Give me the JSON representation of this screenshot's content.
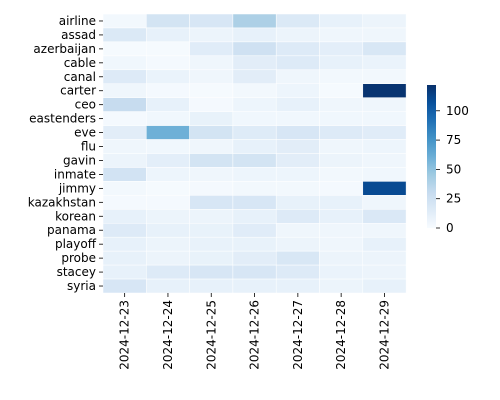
{
  "chart_data": {
    "type": "heatmap",
    "title": "",
    "xlabel": "",
    "ylabel": "",
    "x": [
      "2024-12-23",
      "2024-12-24",
      "2024-12-25",
      "2024-12-26",
      "2024-12-27",
      "2024-12-28",
      "2024-12-29"
    ],
    "y": [
      "airline",
      "assad",
      "azerbaijan",
      "cable",
      "canal",
      "carter",
      "ceo",
      "eastenders",
      "eve",
      "flu",
      "gavin",
      "inmate",
      "jimmy",
      "kazakhstan",
      "korean",
      "panama",
      "playoff",
      "probe",
      "stacey",
      "syria"
    ],
    "values": [
      [
        3,
        22,
        20,
        40,
        17,
        10,
        7
      ],
      [
        17,
        10,
        7,
        10,
        7,
        5,
        5
      ],
      [
        1,
        1,
        14,
        25,
        16,
        12,
        19
      ],
      [
        4,
        2,
        5,
        13,
        16,
        10,
        8
      ],
      [
        16,
        8,
        5,
        13,
        5,
        3,
        3
      ],
      [
        5,
        2,
        1,
        3,
        6,
        1,
        120
      ],
      [
        30,
        10,
        2,
        6,
        10,
        5,
        5
      ],
      [
        2,
        4,
        9,
        4,
        4,
        4,
        4
      ],
      [
        13,
        60,
        22,
        15,
        20,
        16,
        14
      ],
      [
        5,
        4,
        5,
        10,
        13,
        5,
        6
      ],
      [
        7,
        12,
        22,
        22,
        13,
        7,
        5
      ],
      [
        23,
        6,
        5,
        6,
        6,
        3,
        4
      ],
      [
        3,
        1,
        2,
        3,
        3,
        2,
        110
      ],
      [
        2,
        2,
        20,
        20,
        10,
        10,
        5
      ],
      [
        10,
        7,
        7,
        10,
        16,
        10,
        18
      ],
      [
        16,
        10,
        9,
        14,
        5,
        5,
        5
      ],
      [
        10,
        7,
        9,
        9,
        7,
        5,
        10
      ],
      [
        10,
        7,
        9,
        13,
        19,
        7,
        7
      ],
      [
        10,
        16,
        20,
        20,
        16,
        8,
        7
      ],
      [
        20,
        10,
        10,
        10,
        10,
        7,
        10
      ]
    ],
    "vmin": 0,
    "vmax": 122,
    "colormap": "Blues",
    "colorbar": {
      "ticks": [
        0,
        25,
        50,
        75,
        100
      ]
    }
  }
}
